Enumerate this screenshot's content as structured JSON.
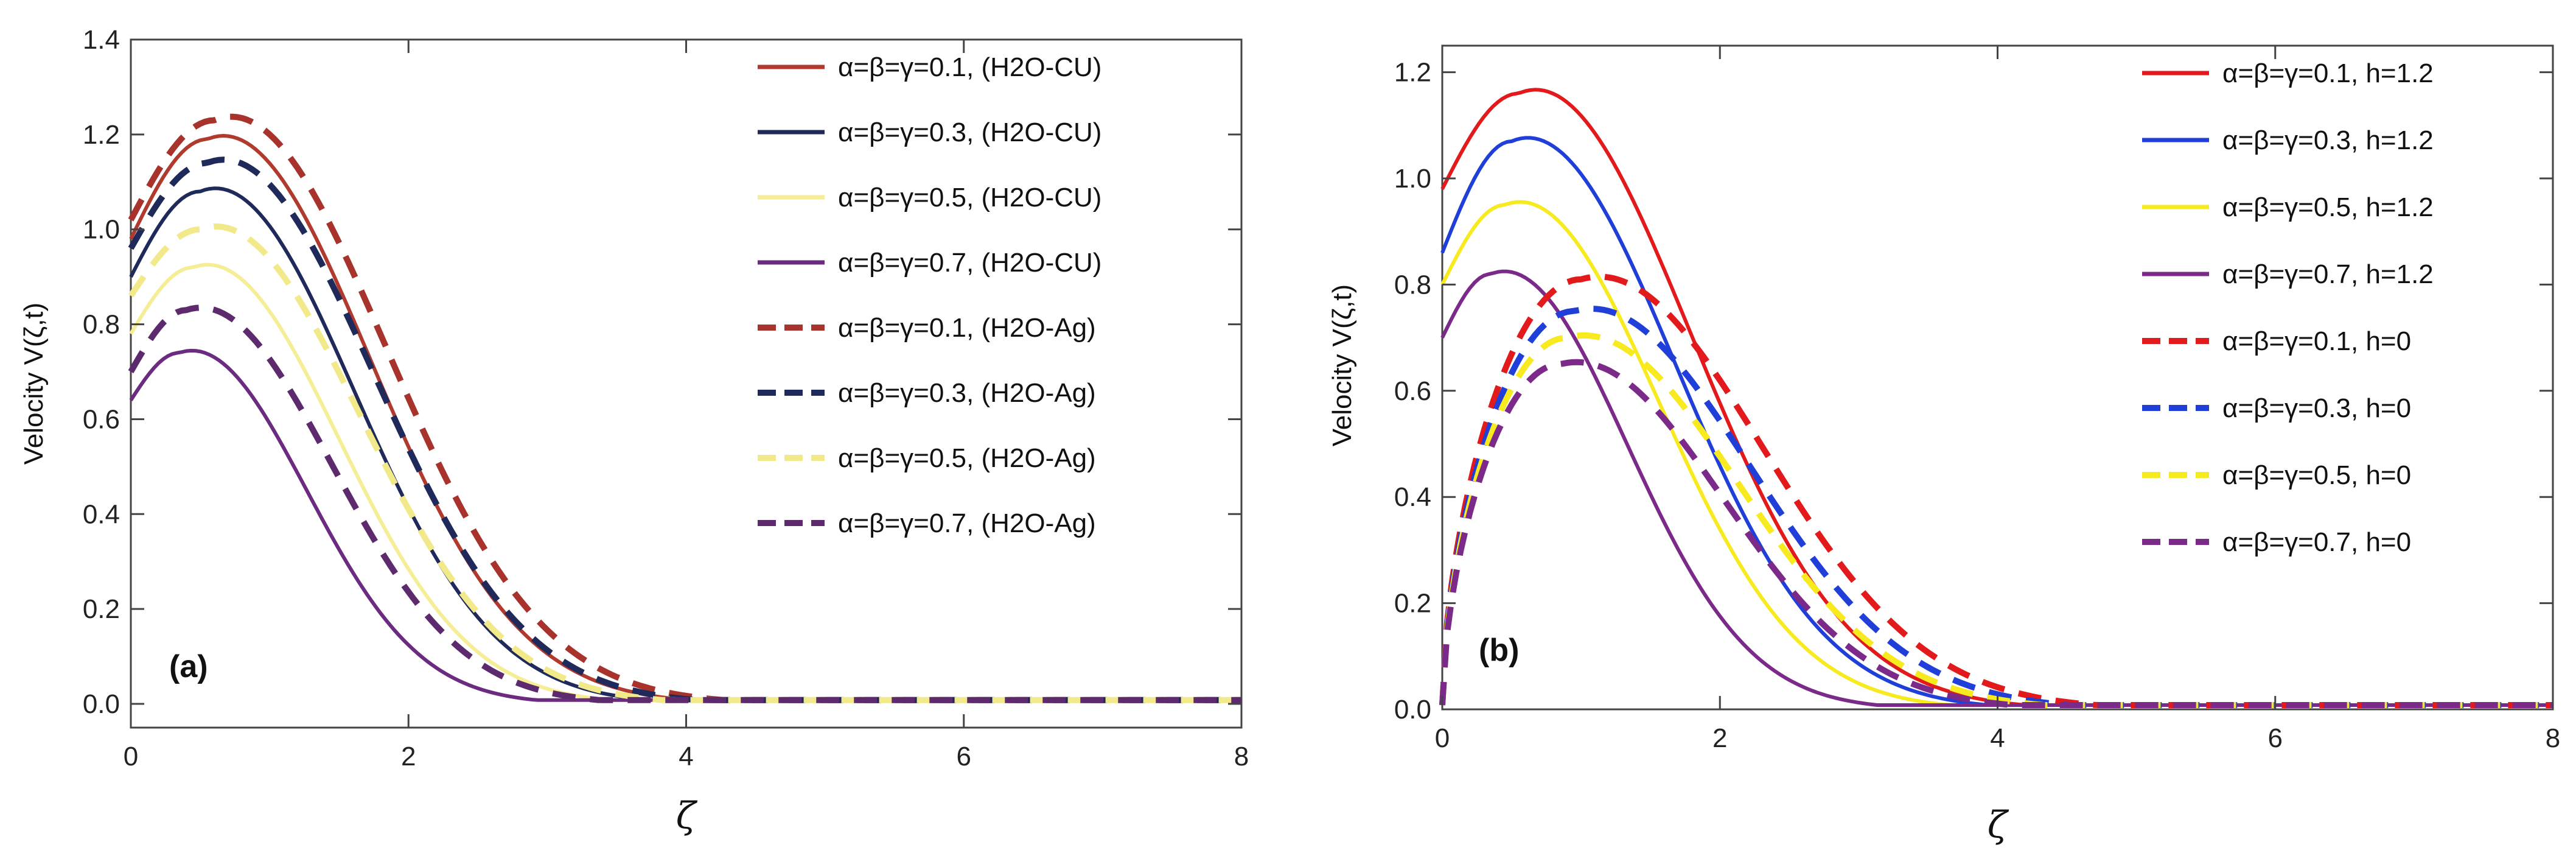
{
  "chart_data": [
    {
      "panel": "(a)",
      "type": "line",
      "xlabel": "ζ",
      "ylabel": "Velocity V(ζ,t)",
      "xlim": [
        0,
        8
      ],
      "ylim": [
        -0.05,
        1.4
      ],
      "xticks": [
        0,
        2,
        4,
        6,
        8
      ],
      "yticks": [
        0.0,
        0.2,
        0.4,
        0.6,
        0.8,
        1.0,
        1.2,
        1.4
      ],
      "ytick_labels": [
        "0.0",
        "0.2",
        "0.4",
        "0.6",
        "0.8",
        "1.0",
        "1.2",
        "1.4"
      ],
      "legend_position": "top-right",
      "series": [
        {
          "name": "α=β=γ=0.1, (H2O-CU)",
          "color": "#B03A2E",
          "style": "solid",
          "start": 0.98,
          "peak_x": 0.55,
          "peak_y": 1.19,
          "decay": 0.9
        },
        {
          "name": "α=β=γ=0.3, (H2O-CU)",
          "color": "#1F2A5A",
          "style": "solid",
          "start": 0.9,
          "peak_x": 0.5,
          "peak_y": 1.08,
          "decay": 0.85
        },
        {
          "name": "α=β=γ=0.5, (H2O-CU)",
          "color": "#F5EE96",
          "style": "solid",
          "start": 0.78,
          "peak_x": 0.45,
          "peak_y": 0.92,
          "decay": 0.8
        },
        {
          "name": "α=β=γ=0.7, (H2O-CU)",
          "color": "#6B2B80",
          "style": "solid",
          "start": 0.64,
          "peak_x": 0.35,
          "peak_y": 0.74,
          "decay": 0.7
        },
        {
          "name": "α=β=γ=0.1, (H2O-Ag)",
          "color": "#A8322C",
          "style": "dashed",
          "start": 1.02,
          "peak_x": 0.6,
          "peak_y": 1.23,
          "decay": 0.95
        },
        {
          "name": "α=β=γ=0.3, (H2O-Ag)",
          "color": "#1F2A5A",
          "style": "dashed",
          "start": 0.96,
          "peak_x": 0.55,
          "peak_y": 1.14,
          "decay": 0.92
        },
        {
          "name": "α=β=γ=0.5, (H2O-Ag)",
          "color": "#F2EA8A",
          "style": "dashed",
          "start": 0.86,
          "peak_x": 0.5,
          "peak_y": 1.0,
          "decay": 0.88
        },
        {
          "name": "α=β=γ=0.7, (H2O-Ag)",
          "color": "#5E2A6E",
          "style": "dashed",
          "start": 0.7,
          "peak_x": 0.4,
          "peak_y": 0.83,
          "decay": 0.8
        }
      ]
    },
    {
      "panel": "(b)",
      "type": "line",
      "xlabel": "ζ",
      "ylabel": "Velocity V(ζ,t)",
      "xlim": [
        0,
        8
      ],
      "ylim": [
        0,
        1.25
      ],
      "xticks": [
        0,
        2,
        4,
        6,
        8
      ],
      "yticks": [
        0.0,
        0.2,
        0.4,
        0.6,
        0.8,
        1.0,
        1.2
      ],
      "ytick_labels": [
        "0.0",
        "0.2",
        "0.4",
        "0.6",
        "0.8",
        "1.0",
        "1.2"
      ],
      "legend_position": "top-right",
      "series": [
        {
          "name": "α=β=γ=0.1, h=1.2",
          "color": "#E31A1C",
          "style": "solid",
          "start": 0.98,
          "peak_x": 0.55,
          "peak_y": 1.16,
          "decay": 0.95
        },
        {
          "name": "α=β=γ=0.3, h=1.2",
          "color": "#1F3FD8",
          "style": "solid",
          "start": 0.86,
          "peak_x": 0.5,
          "peak_y": 1.07,
          "decay": 0.9
        },
        {
          "name": "α=β=γ=0.5, h=1.2",
          "color": "#F7EA1E",
          "style": "solid",
          "start": 0.8,
          "peak_x": 0.45,
          "peak_y": 0.95,
          "decay": 0.85
        },
        {
          "name": "α=β=γ=0.7, h=1.2",
          "color": "#7B2A8A",
          "style": "solid",
          "start": 0.7,
          "peak_x": 0.35,
          "peak_y": 0.82,
          "decay": 0.75
        },
        {
          "name": "α=β=γ=0.1, h=0",
          "color": "#E31A1C",
          "style": "dashed",
          "start": 0.0,
          "peak_x": 1.0,
          "peak_y": 0.81,
          "decay": 1.0
        },
        {
          "name": "α=β=γ=0.3, h=0",
          "color": "#1F3FD8",
          "style": "dashed",
          "start": 0.0,
          "peak_x": 0.95,
          "peak_y": 0.75,
          "decay": 0.97
        },
        {
          "name": "α=β=γ=0.5, h=0",
          "color": "#F7EA1E",
          "style": "dashed",
          "start": 0.0,
          "peak_x": 0.9,
          "peak_y": 0.7,
          "decay": 0.94
        },
        {
          "name": "α=β=γ=0.7, h=0",
          "color": "#7B2A8A",
          "style": "dashed",
          "start": 0.0,
          "peak_x": 0.85,
          "peak_y": 0.65,
          "decay": 0.9
        }
      ]
    }
  ]
}
